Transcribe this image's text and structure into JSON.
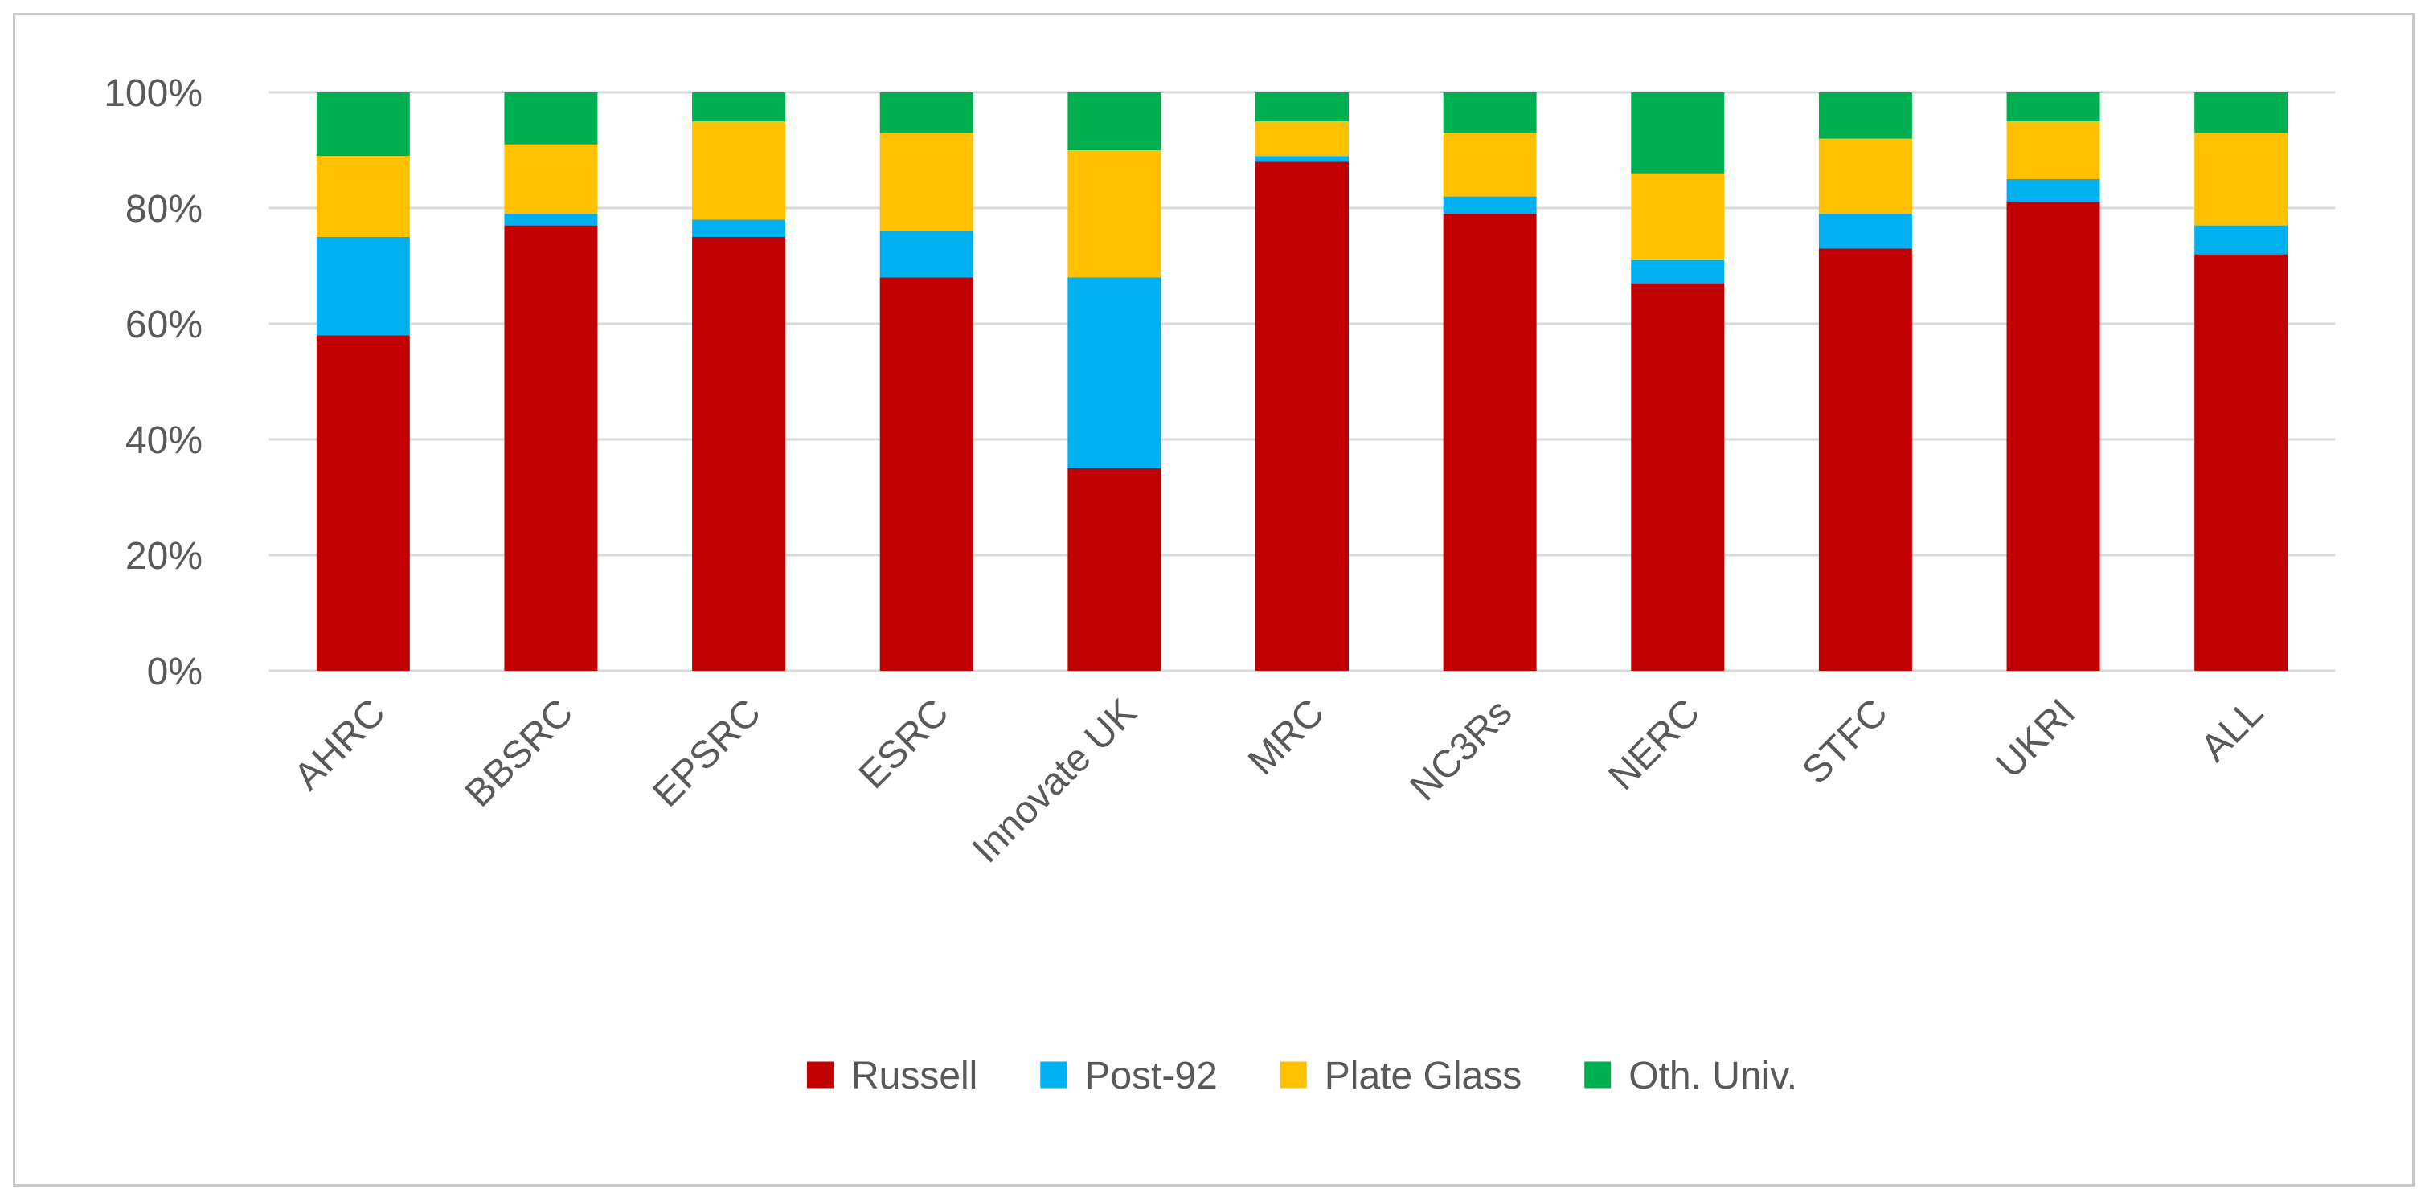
{
  "chart_data": {
    "type": "bar",
    "stacked": true,
    "percent": true,
    "title": "",
    "xlabel": "",
    "ylabel": "",
    "ylim": [
      0,
      100
    ],
    "yticks": [
      "0%",
      "20%",
      "40%",
      "60%",
      "80%",
      "100%"
    ],
    "grid": true,
    "legend_position": "bottom",
    "categories": [
      "AHRC",
      "BBSRC",
      "EPSRC",
      "ESRC",
      "Innovate UK",
      "MRC",
      "NC3Rs",
      "NERC",
      "STFC",
      "UKRI",
      "ALL"
    ],
    "series": [
      {
        "name": "Russell",
        "color": "#C00000",
        "values": [
          58,
          77,
          75,
          68,
          35,
          88,
          79,
          67,
          73,
          81,
          72
        ]
      },
      {
        "name": "Post-92",
        "color": "#00B0F0",
        "values": [
          17,
          2,
          3,
          8,
          33,
          1,
          3,
          4,
          6,
          4,
          5
        ]
      },
      {
        "name": "Plate Glass",
        "color": "#FFC000",
        "values": [
          14,
          12,
          17,
          17,
          22,
          6,
          11,
          15,
          13,
          10,
          16
        ]
      },
      {
        "name": "Oth. Univ.",
        "color": "#00B050",
        "values": [
          11,
          9,
          5,
          7,
          10,
          5,
          7,
          14,
          8,
          5,
          7
        ]
      }
    ]
  }
}
